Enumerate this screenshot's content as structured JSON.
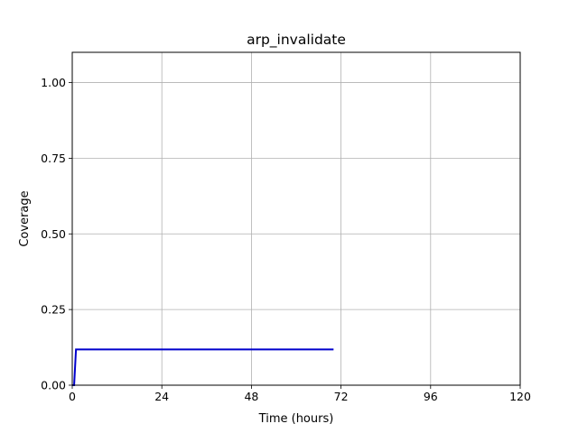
{
  "chart_data": {
    "type": "line",
    "title": "arp_invalidate",
    "xlabel": "Time (hours)",
    "ylabel": "Coverage",
    "xlim": [
      0,
      120
    ],
    "ylim": [
      0,
      1.1
    ],
    "xticks": [
      0,
      24,
      48,
      72,
      96,
      120
    ],
    "xtick_labels": [
      "0",
      "24",
      "48",
      "72",
      "96",
      "120"
    ],
    "yticks": [
      0,
      0.25,
      0.5,
      0.75,
      1.0
    ],
    "ytick_labels": [
      "0.00",
      "0.25",
      "0.50",
      "0.75",
      "1.00"
    ],
    "grid": true,
    "series": [
      {
        "color": "#0000cc",
        "x": [
          0,
          0.5,
          1.0,
          70
        ],
        "y": [
          0,
          0.0,
          0.118,
          0.118
        ]
      }
    ]
  }
}
